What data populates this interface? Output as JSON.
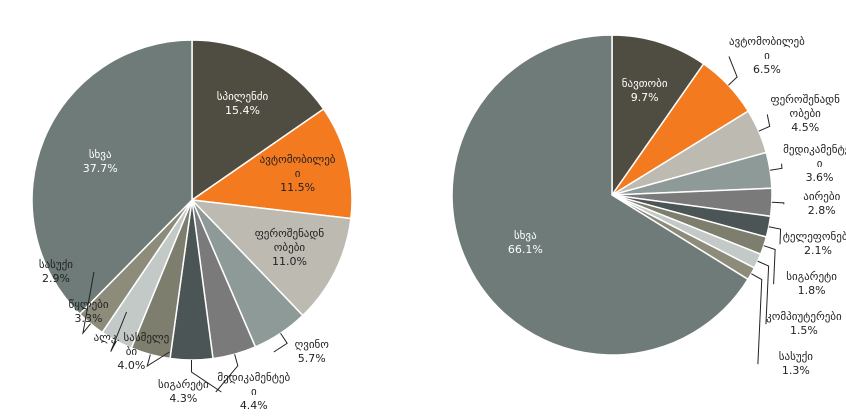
{
  "chart_data": [
    {
      "type": "pie",
      "categories": [
        "სპილენძი",
        "ავტომობილები",
        "ფეროშენადნობები",
        "ღვინო",
        "მედიკამენტები",
        "სიგარეტი",
        "ალკ. სასმელები",
        "წყლები",
        "სასუქი",
        "სხვა"
      ],
      "values": [
        15.4,
        11.5,
        11.0,
        5.7,
        4.4,
        4.3,
        4.0,
        3.3,
        2.9,
        37.7
      ],
      "value_labels": [
        "15.4%",
        "11.5%",
        "11.0%",
        "5.7%",
        "4.4%",
        "4.3%",
        "4.0%",
        "3.3%",
        "2.9%",
        "37.7%"
      ],
      "colors": [
        "#4f4d42",
        "#f47a20",
        "#bcbab1",
        "#8e9a98",
        "#7a7a7a",
        "#4b5555",
        "#7e7e6e",
        "#c3c9c6",
        "#8d8c7b",
        "#6e7b78"
      ]
    },
    {
      "type": "pie",
      "categories": [
        "ნავთობი",
        "ავტომობილები",
        "ფეროშენადნობები",
        "მედიკამენტები",
        "აირები",
        "ტელეფონები",
        "სიგარეტი",
        "კომპიუტერები",
        "სასუქი",
        "სხვა"
      ],
      "values": [
        9.7,
        6.5,
        4.5,
        3.6,
        2.8,
        2.1,
        1.8,
        1.5,
        1.3,
        66.1
      ],
      "value_labels": [
        "9.7%",
        "6.5%",
        "4.5%",
        "3.6%",
        "2.8%",
        "2.1%",
        "1.8%",
        "1.5%",
        "1.3%",
        "66.1%"
      ],
      "colors": [
        "#4f4d42",
        "#f47a20",
        "#bcbab1",
        "#8e9a98",
        "#7a7a7a",
        "#4b5555",
        "#7e7e6e",
        "#c3c9c6",
        "#8d8c7b",
        "#6e7b78"
      ]
    }
  ]
}
